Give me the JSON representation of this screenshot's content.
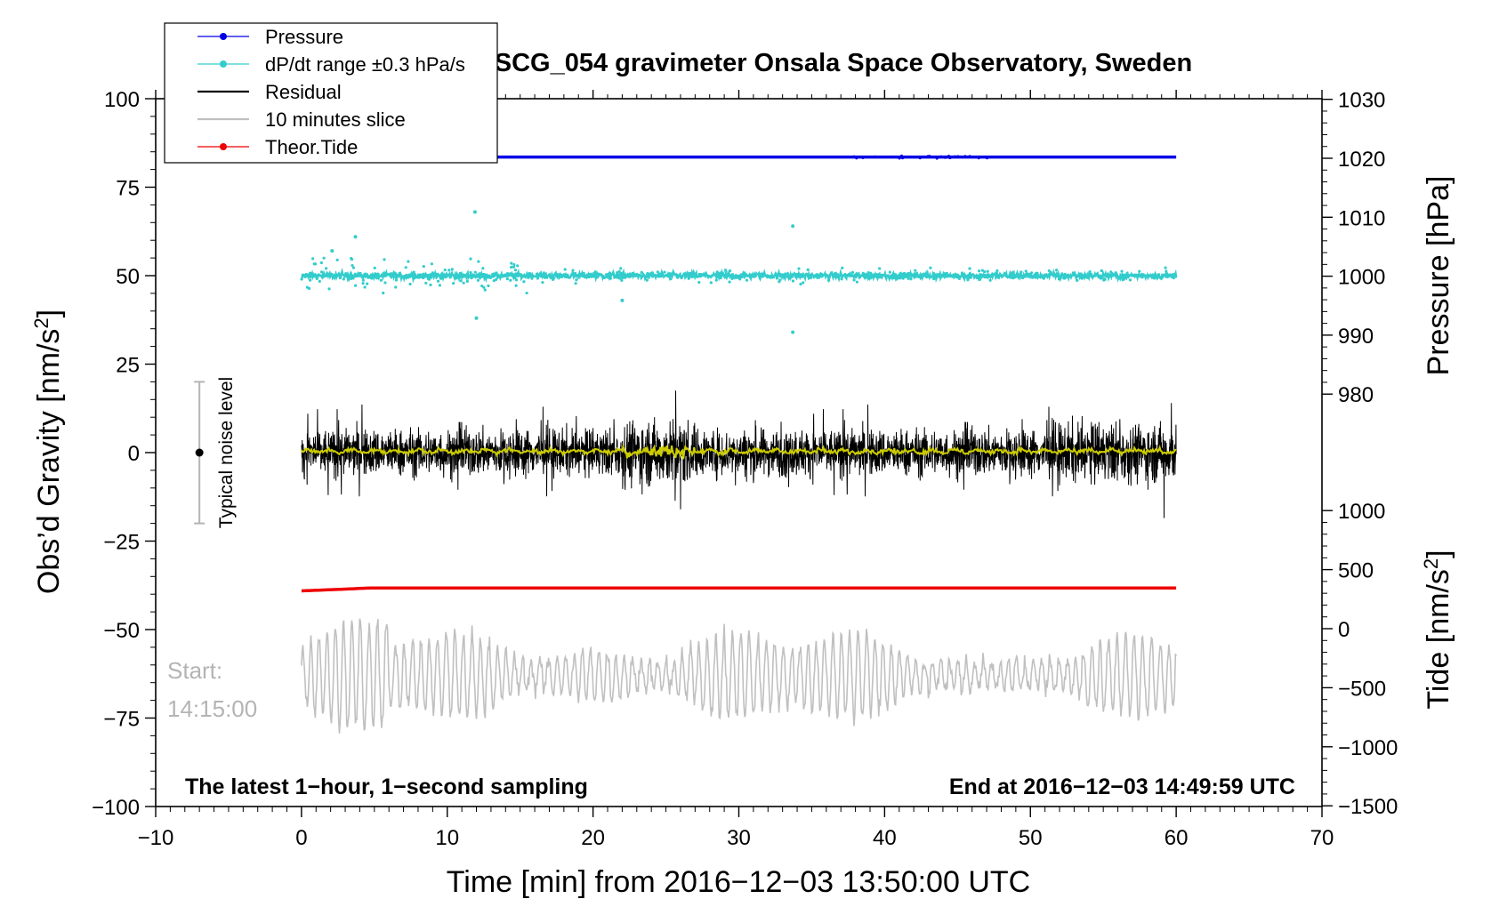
{
  "chart_data": {
    "type": "line",
    "title": "SCG_054 gravimeter Onsala Space Observatory, Sweden",
    "xlabel": "Time [min] from 2016−12−03 13:50:00 UTC",
    "ylabel_left": "Obs’d Gravity [nm/s",
    "ylabel_left_sup": "2",
    "ylabel_left_end": "]",
    "ylabel_right_pressure": "Pressure [hPa]",
    "ylabel_right_tide": "Tide [nm/s",
    "ylabel_right_tide_sup": "2",
    "ylabel_right_tide_end": "]",
    "xlim": [
      -10,
      70
    ],
    "ylim_left": [
      -100,
      100
    ],
    "pressure_range": [
      980,
      1030
    ],
    "tide_range": [
      -1500,
      1000
    ],
    "x_ticks": [
      "−10",
      "0",
      "10",
      "20",
      "30",
      "40",
      "50",
      "60",
      "70"
    ],
    "y_left_ticks": [
      "100",
      "75",
      "50",
      "25",
      "0",
      "−25",
      "−50",
      "−75",
      "−100"
    ],
    "y_pressure_ticks": [
      "1030",
      "1020",
      "1010",
      "1000",
      "990",
      "980"
    ],
    "y_tide_ticks": [
      "1000",
      "500",
      "0",
      "−500",
      "−1000",
      "−1500"
    ],
    "legend": [
      {
        "label": "Pressure",
        "color": "#0000e6",
        "marker": true
      },
      {
        "label": "dP/dt range ±0.3 hPa/s",
        "color": "#33cccc",
        "marker": true
      },
      {
        "label": "Residual",
        "color": "#000000",
        "marker": false
      },
      {
        "label": "10 minutes slice",
        "color": "#c0c0c0",
        "marker": false
      },
      {
        "label": "Theor.Tide",
        "color": "#ee0000",
        "marker": true
      }
    ],
    "series": [
      {
        "name": "Pressure",
        "color": "#0000e6",
        "x_range": [
          0,
          60
        ],
        "pressure_hPa": 1020.2
      },
      {
        "name": "dP/dt range ±0.3 hPa/s",
        "color": "#33cccc",
        "x_range": [
          0,
          60
        ],
        "gravity_level": 50,
        "outliers": [
          [
            2.1,
            57
          ],
          [
            3.7,
            61
          ],
          [
            11.9,
            68
          ],
          [
            12.0,
            38
          ],
          [
            33.7,
            64
          ],
          [
            33.7,
            34
          ],
          [
            22.0,
            43
          ]
        ]
      },
      {
        "name": "Residual",
        "color": "#000000",
        "x_range": [
          0,
          60
        ],
        "gravity_level": 0,
        "amplitude": 10,
        "max_spikes": [
          17.5,
          -18.5
        ]
      },
      {
        "name": "Smoothed residual",
        "color": "#cccc00",
        "x_range": [
          0,
          60
        ],
        "gravity_level": 0
      },
      {
        "name": "10 minutes slice",
        "color": "#c0c0c0",
        "x_range": [
          0,
          60
        ],
        "gravity_level": -63,
        "min": -80,
        "max": -44
      },
      {
        "name": "Theor.Tide",
        "color": "#ee0000",
        "x_range": [
          0,
          60
        ],
        "tide_values_start_end": [
          320,
          345
        ]
      }
    ],
    "noise_level": {
      "label": "Typical noise level",
      "x": -7,
      "center": 0,
      "range": [
        -20,
        20
      ]
    },
    "start_label": "Start:",
    "start_time": "14:15:00",
    "footnote_left": "The latest 1−hour, 1−second sampling",
    "footnote_right": "End at 2016−12−03 14:49:59 UTC",
    "colors": {
      "pressure": "#0000e6",
      "dpdt": "#33cccc",
      "residual": "#000000",
      "smooth": "#cccc00",
      "slice": "#c0c0c0",
      "tide": "#ee0000"
    }
  }
}
